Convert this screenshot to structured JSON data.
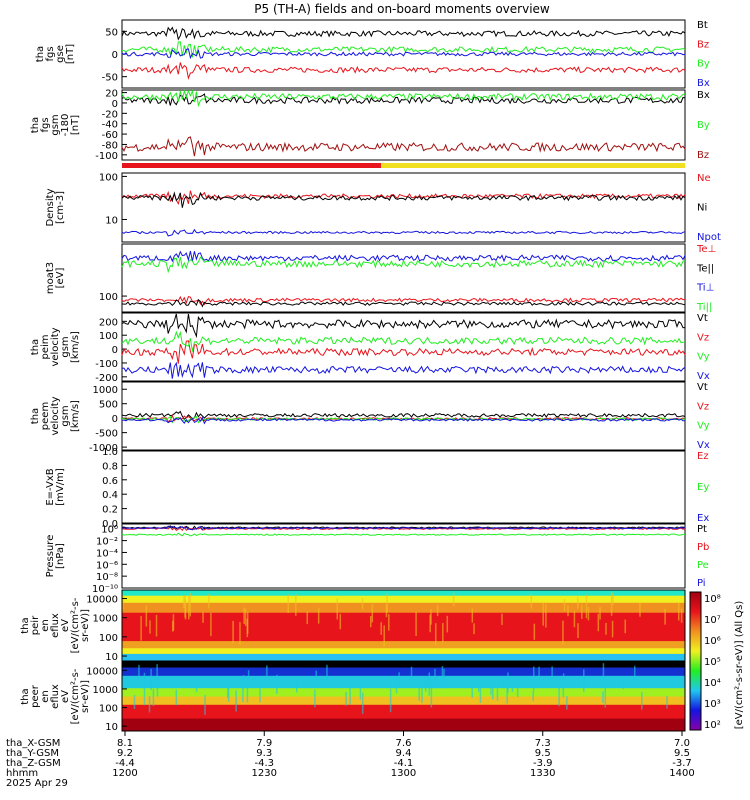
{
  "title": "P5 (TH-A) fields and on-board moments overview",
  "colors": {
    "black": "#000000",
    "red": "#e8141c",
    "green": "#22ee22",
    "blue": "#1414e0",
    "darkred": "#a01010",
    "yellow": "#f0e020"
  },
  "chart_data": [
    {
      "id": "fgs_gse",
      "type": "line",
      "ylabel": [
        "tha",
        "fgs",
        "gse",
        "[nT]"
      ],
      "yticks": [
        "50",
        "0",
        "-50"
      ],
      "ylim": [
        -75,
        75
      ],
      "series": [
        {
          "name": "Bt",
          "color": "black",
          "level": 45,
          "noise": 6
        },
        {
          "name": "Bz",
          "color": "red",
          "level": -35,
          "noise": 6
        },
        {
          "name": "By",
          "color": "green",
          "level": 10,
          "noise": 6
        },
        {
          "name": "Bx",
          "color": "blue",
          "level": 0,
          "noise": 4
        }
      ]
    },
    {
      "id": "fgs_gsm",
      "type": "line",
      "ylabel": [
        "tha",
        "fgs",
        "gsm",
        "-180",
        "[nT]"
      ],
      "yticks": [
        "20",
        "0",
        "-20",
        "-40",
        "-60",
        "-80",
        "-100"
      ],
      "ylim": [
        -110,
        25
      ],
      "series": [
        {
          "name": "Bx",
          "color": "black",
          "level": 5,
          "noise": 6
        },
        {
          "name": "By",
          "color": "green",
          "level": 12,
          "noise": 6
        },
        {
          "name": "Bz",
          "color": "darkred",
          "level": -85,
          "noise": 8
        }
      ]
    },
    {
      "id": "density",
      "type": "line",
      "ylabel": [
        "Density",
        "[cm-3]"
      ],
      "yticks": [
        "100",
        "10"
      ],
      "ylim": [
        3,
        120
      ],
      "log": true,
      "series": [
        {
          "name": "Ne",
          "color": "red",
          "level": 35,
          "noise": 4
        },
        {
          "name": "Ni",
          "color": "black",
          "level": 32,
          "noise": 4
        },
        {
          "name": "Npot",
          "color": "blue",
          "level": 5,
          "noise": 0.3
        }
      ]
    },
    {
      "id": "temp",
      "type": "line",
      "ylabel": [
        "moat3",
        "[eV]"
      ],
      "yticks": [
        "100"
      ],
      "ylim": [
        40,
        2000
      ],
      "log": true,
      "series": [
        {
          "name": "Te⊥",
          "color": "red",
          "level": 80,
          "noise": 8
        },
        {
          "name": "Te||",
          "color": "black",
          "level": 65,
          "noise": 6
        },
        {
          "name": "Ti⊥",
          "color": "blue",
          "level": 900,
          "noise": 150
        },
        {
          "name": "Ti||",
          "color": "green",
          "level": 650,
          "noise": 120
        }
      ]
    },
    {
      "id": "peim_vel",
      "type": "line",
      "ylabel": [
        "tha",
        "peim",
        "velocity",
        "gsm",
        "[km/s]"
      ],
      "yticks": [
        "200",
        "100",
        "0",
        "-100",
        "-200"
      ],
      "ylim": [
        -230,
        260
      ],
      "series": [
        {
          "name": "Vt",
          "color": "black",
          "level": 180,
          "noise": 30
        },
        {
          "name": "Vz",
          "color": "red",
          "level": -20,
          "noise": 25
        },
        {
          "name": "Vy",
          "color": "green",
          "level": 60,
          "noise": 25
        },
        {
          "name": "Vx",
          "color": "blue",
          "level": -150,
          "noise": 25
        }
      ]
    },
    {
      "id": "peem_vel",
      "type": "line",
      "ylabel": [
        "tha",
        "peem",
        "velocity",
        "gsm",
        "[km/s]"
      ],
      "yticks": [
        "1000",
        "500",
        "0",
        "-500",
        "-1000"
      ],
      "ylim": [
        -1100,
        1250
      ],
      "series": [
        {
          "name": "Vt",
          "color": "black",
          "level": 100,
          "noise": 60
        },
        {
          "name": "Vz",
          "color": "red",
          "level": -20,
          "noise": 40
        },
        {
          "name": "Vy",
          "color": "green",
          "level": -30,
          "noise": 40
        },
        {
          "name": "Vx",
          "color": "blue",
          "level": -60,
          "noise": 40
        }
      ]
    },
    {
      "id": "efield",
      "type": "line",
      "ylabel": [
        "E=-VxB",
        "[mV/m]"
      ],
      "yticks": [
        "1.0",
        "0.8",
        "0.6",
        "0.4",
        "0.2",
        "0.0"
      ],
      "ylim": [
        0,
        1.0
      ],
      "series": [
        {
          "name": "Ez",
          "color": "red",
          "level": null,
          "noise": 0
        },
        {
          "name": "Ey",
          "color": "green",
          "level": null,
          "noise": 0
        },
        {
          "name": "Ex",
          "color": "blue",
          "level": null,
          "noise": 0
        }
      ]
    },
    {
      "id": "pressure",
      "type": "line",
      "ylabel": [
        "Pressure",
        "[nPa]"
      ],
      "yticks": [
        "10⁰",
        "10⁻²",
        "10⁻⁴",
        "10⁻⁶",
        "10⁻⁸",
        "10⁻¹⁰"
      ],
      "ylim": [
        -10,
        0.8
      ],
      "log_exp": true,
      "series": [
        {
          "name": "Pt",
          "color": "black",
          "level": 0.2,
          "noise": 0.1
        },
        {
          "name": "Pb",
          "color": "red",
          "level": 0.0,
          "noise": 0.1
        },
        {
          "name": "Pe",
          "color": "green",
          "level": -1.0,
          "noise": 0.1
        },
        {
          "name": "Pi",
          "color": "blue",
          "level": 0.1,
          "noise": 0.1
        }
      ]
    },
    {
      "id": "peir",
      "type": "heatmap",
      "ylabel": [
        "tha",
        "peir",
        "en",
        "eflux",
        "eV",
        "[eV/(cm²-s-",
        "sr-eV)]"
      ],
      "yticks": [
        "10000",
        "1000",
        "100",
        "10"
      ]
    },
    {
      "id": "peer",
      "type": "heatmap",
      "ylabel": [
        "tha",
        "peer",
        "en",
        "eflux",
        "eV",
        "[eV/(cm²-s-",
        "sr-eV)]"
      ],
      "yticks": [
        "10000",
        "1000",
        "100",
        "10"
      ]
    }
  ],
  "colorbar": {
    "label": "[eV/(cm²-s-sr-eV)] (All Qs)",
    "ticks": [
      "10⁸",
      "10⁷",
      "10⁶",
      "10⁵",
      "10⁴",
      "10³",
      "10²"
    ]
  },
  "xaxis": {
    "times": [
      "1200",
      "1230",
      "1300",
      "1330",
      "1400"
    ],
    "rows": [
      {
        "label": "tha_X-GSM",
        "values": [
          "8.1",
          "7.9",
          "7.6",
          "7.3",
          "7.0"
        ]
      },
      {
        "label": "tha_Y-GSM",
        "values": [
          "9.2",
          "9.3",
          "9.4",
          "9.5",
          "9.5"
        ]
      },
      {
        "label": "tha_Z-GSM",
        "values": [
          "-4.4",
          "-4.3",
          "-4.1",
          "-3.9",
          "-3.7"
        ]
      },
      {
        "label": "hhmm",
        "values": [
          "1200",
          "1230",
          "1300",
          "1330",
          "1400"
        ]
      }
    ],
    "date": "2025 Apr 29"
  }
}
